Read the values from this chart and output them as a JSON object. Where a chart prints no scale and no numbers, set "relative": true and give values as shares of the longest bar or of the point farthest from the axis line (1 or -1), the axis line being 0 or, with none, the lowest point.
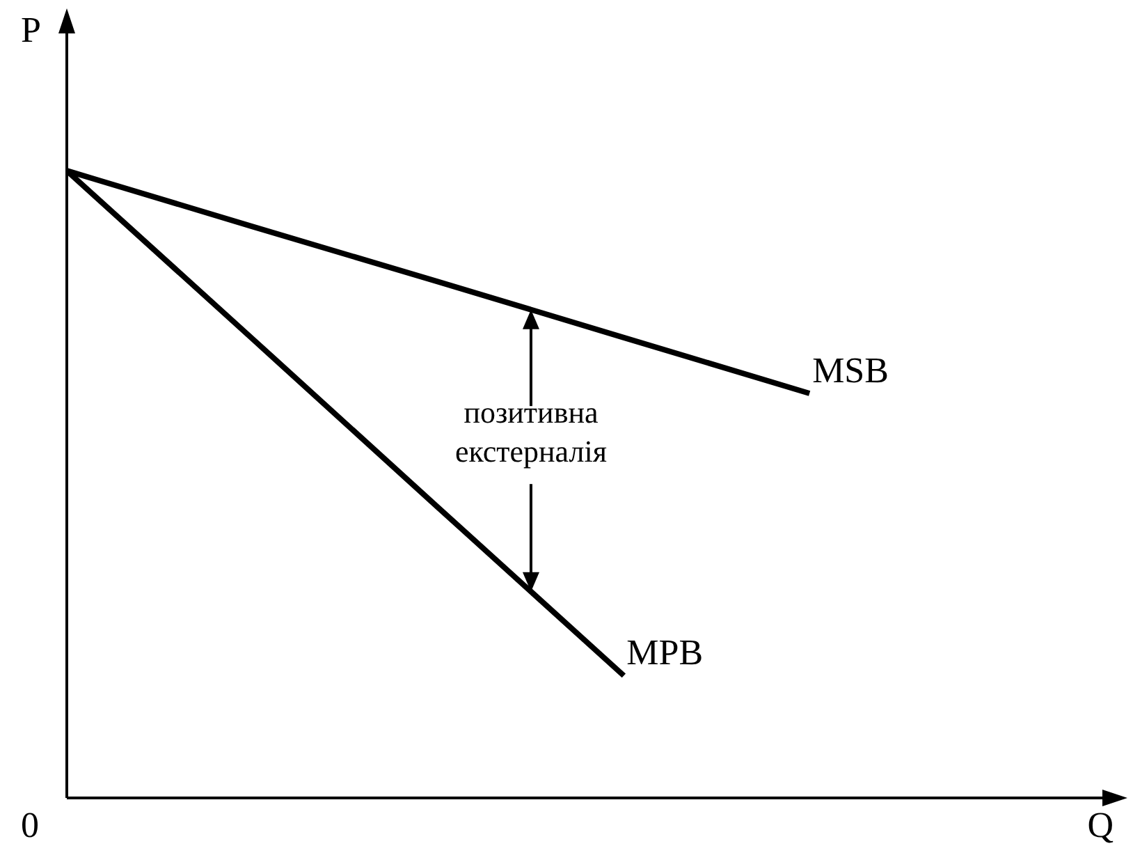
{
  "chart_data": {
    "type": "line",
    "relative": true,
    "ylabel": "P",
    "marker": "none",
    "line_style": "solid",
    "categories": [
      null,
      null,
      null,
      null,
      null
    ],
    "series": [
      {
        "name": "MSB",
        "color": "#000000",
        "values": [
          1,
          0.911,
          0.823,
          0.734,
          0.645
        ]
      },
      {
        "name": "MPB",
        "color": "#000000",
        "values": [
          1,
          0.732,
          0.463,
          0.195,
          null
        ]
      }
    ],
    "annotations": [
      "0",
      "Q",
      "позитивна екстерналія"
    ]
  }
}
